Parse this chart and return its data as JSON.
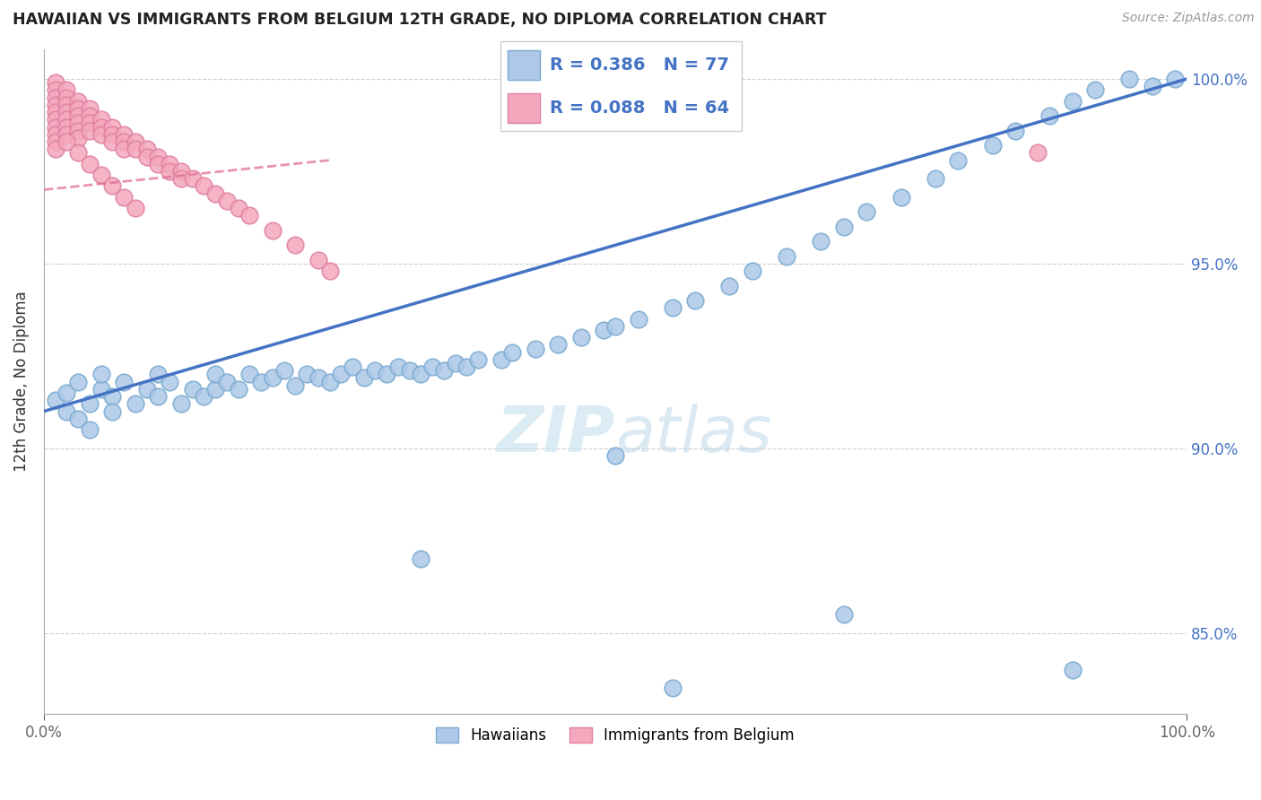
{
  "title": "HAWAIIAN VS IMMIGRANTS FROM BELGIUM 12TH GRADE, NO DIPLOMA CORRELATION CHART",
  "source": "Source: ZipAtlas.com",
  "ylabel": "12th Grade, No Diploma",
  "ytick_labels": [
    "85.0%",
    "90.0%",
    "95.0%",
    "100.0%"
  ],
  "ytick_values": [
    0.85,
    0.9,
    0.95,
    1.0
  ],
  "legend_blue_label": "Hawaiians",
  "legend_pink_label": "Immigrants from Belgium",
  "legend_blue_R": "R = 0.386",
  "legend_blue_N": "N = 77",
  "legend_pink_R": "R = 0.088",
  "legend_pink_N": "N = 64",
  "blue_color": "#adc8e8",
  "pink_color": "#f4a8be",
  "blue_edge_color": "#7aaad0",
  "pink_edge_color": "#e080a0",
  "blue_line_color": "#4472c4",
  "pink_line_color": "#e07090",
  "watermark_color": "#cce4f0",
  "hawaiians_x": [
    0.01,
    0.02,
    0.02,
    0.03,
    0.03,
    0.04,
    0.04,
    0.05,
    0.05,
    0.06,
    0.06,
    0.07,
    0.08,
    0.09,
    0.1,
    0.1,
    0.11,
    0.12,
    0.13,
    0.14,
    0.15,
    0.15,
    0.16,
    0.17,
    0.18,
    0.19,
    0.2,
    0.21,
    0.22,
    0.23,
    0.24,
    0.25,
    0.26,
    0.27,
    0.28,
    0.29,
    0.3,
    0.31,
    0.32,
    0.33,
    0.34,
    0.35,
    0.36,
    0.37,
    0.38,
    0.4,
    0.41,
    0.43,
    0.45,
    0.47,
    0.49,
    0.5,
    0.52,
    0.55,
    0.57,
    0.6,
    0.62,
    0.65,
    0.68,
    0.7,
    0.72,
    0.75,
    0.78,
    0.8,
    0.83,
    0.85,
    0.88,
    0.9,
    0.92,
    0.95,
    0.97,
    0.99,
    0.5,
    0.7,
    0.9,
    0.33,
    0.55
  ],
  "hawaiians_y": [
    0.913,
    0.91,
    0.915,
    0.908,
    0.918,
    0.912,
    0.905,
    0.916,
    0.92,
    0.914,
    0.91,
    0.918,
    0.912,
    0.916,
    0.914,
    0.92,
    0.918,
    0.912,
    0.916,
    0.914,
    0.916,
    0.92,
    0.918,
    0.916,
    0.92,
    0.918,
    0.919,
    0.921,
    0.917,
    0.92,
    0.919,
    0.918,
    0.92,
    0.922,
    0.919,
    0.921,
    0.92,
    0.922,
    0.921,
    0.92,
    0.922,
    0.921,
    0.923,
    0.922,
    0.924,
    0.924,
    0.926,
    0.927,
    0.928,
    0.93,
    0.932,
    0.933,
    0.935,
    0.938,
    0.94,
    0.944,
    0.948,
    0.952,
    0.956,
    0.96,
    0.964,
    0.968,
    0.973,
    0.978,
    0.982,
    0.986,
    0.99,
    0.994,
    0.997,
    1.0,
    0.998,
    1.0,
    0.898,
    0.855,
    0.84,
    0.87,
    0.835
  ],
  "belgium_x": [
    0.01,
    0.01,
    0.01,
    0.01,
    0.01,
    0.01,
    0.01,
    0.01,
    0.01,
    0.02,
    0.02,
    0.02,
    0.02,
    0.02,
    0.02,
    0.02,
    0.03,
    0.03,
    0.03,
    0.03,
    0.03,
    0.03,
    0.04,
    0.04,
    0.04,
    0.04,
    0.05,
    0.05,
    0.05,
    0.06,
    0.06,
    0.06,
    0.07,
    0.07,
    0.07,
    0.08,
    0.08,
    0.09,
    0.09,
    0.1,
    0.1,
    0.11,
    0.11,
    0.12,
    0.12,
    0.13,
    0.14,
    0.15,
    0.16,
    0.17,
    0.18,
    0.2,
    0.22,
    0.24,
    0.01,
    0.02,
    0.03,
    0.04,
    0.05,
    0.06,
    0.07,
    0.08,
    0.25,
    0.87
  ],
  "belgium_y": [
    0.999,
    0.997,
    0.995,
    0.993,
    0.991,
    0.989,
    0.987,
    0.985,
    0.983,
    0.997,
    0.995,
    0.993,
    0.991,
    0.989,
    0.987,
    0.985,
    0.994,
    0.992,
    0.99,
    0.988,
    0.986,
    0.984,
    0.992,
    0.99,
    0.988,
    0.986,
    0.989,
    0.987,
    0.985,
    0.987,
    0.985,
    0.983,
    0.985,
    0.983,
    0.981,
    0.983,
    0.981,
    0.981,
    0.979,
    0.979,
    0.977,
    0.977,
    0.975,
    0.975,
    0.973,
    0.973,
    0.971,
    0.969,
    0.967,
    0.965,
    0.963,
    0.959,
    0.955,
    0.951,
    0.981,
    0.983,
    0.98,
    0.977,
    0.974,
    0.971,
    0.968,
    0.965,
    0.948,
    0.98
  ],
  "ylim_min": 0.828,
  "ylim_max": 1.008
}
